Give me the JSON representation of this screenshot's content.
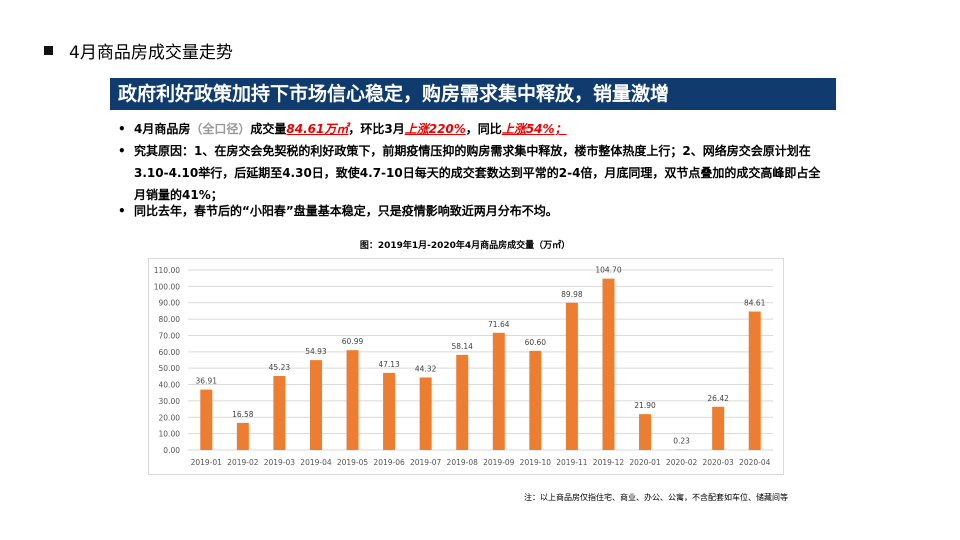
{
  "header": {
    "title": "4月商品房成交量走势"
  },
  "banner": "政府利好政策加持下市场信心稳定，购房需求集中释放，销量激增",
  "bullets": [
    {
      "parts": [
        "4月商品房",
        "（全口径）",
        "成交量",
        "84.61万㎡",
        "，环比3月",
        "上涨220%",
        "，同比",
        "上涨54%；"
      ]
    },
    {
      "text": "究其原因：1、在房交会免契税的利好政策下，前期疫情压抑的购房需求集中释放，楼市整体热度上行；2、网络房交会原计划在3.10-4.10举行，后延期至4.30日，致使4.7-10日每天的成交套数达到平常的2-4倍，月底同理，双节点叠加的成交高峰即占全月销量的41%；"
    },
    {
      "text": "同比去年，春节后的“小阳春”盘量基本稳定，只是疫情影响致近两月分布不均。"
    }
  ],
  "chart_data": {
    "type": "bar",
    "title": "图：2019年1月-2020年4月商品房成交量（万㎡）",
    "categories": [
      "2019-01",
      "2019-02",
      "2019-03",
      "2019-04",
      "2019-05",
      "2019-06",
      "2019-07",
      "2019-08",
      "2019-09",
      "2019-10",
      "2019-11",
      "2019-12",
      "2020-01",
      "2020-02",
      "2020-03",
      "2020-04"
    ],
    "values": [
      36.91,
      16.58,
      45.23,
      54.93,
      60.99,
      47.13,
      44.32,
      58.14,
      71.64,
      60.6,
      89.98,
      104.7,
      21.9,
      0.23,
      26.42,
      84.61
    ],
    "ylim": [
      0,
      110
    ],
    "yticks": [
      "0.00",
      "10.00",
      "20.00",
      "30.00",
      "40.00",
      "50.00",
      "60.00",
      "70.00",
      "80.00",
      "90.00",
      "100.00",
      "110.00"
    ],
    "grid": true,
    "bar_color": "#ed7d31"
  },
  "note": "注：以上商品房仅指住宅、商业、办公、公寓，不含配套如车位、储藏间等"
}
